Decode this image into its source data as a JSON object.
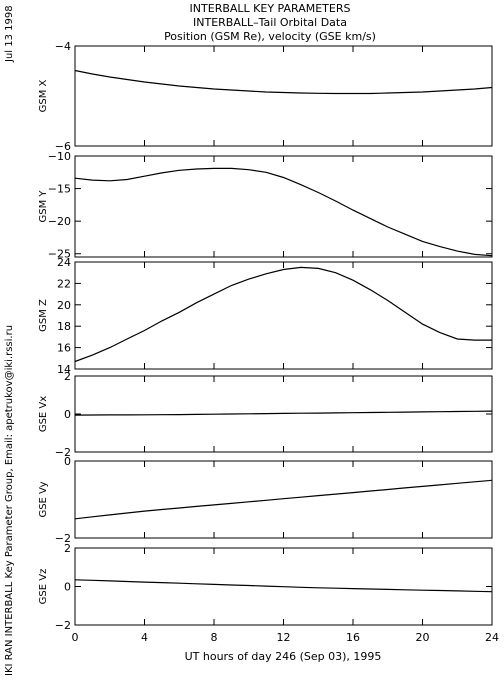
{
  "title_lines": [
    "INTERBALL KEY PARAMETERS",
    "INTERBALL–Tail Orbital Data",
    "Position (GSM Re), velocity (GSE km/s)"
  ],
  "side_date": "Jul 13 1998",
  "side_credit": "IKI RAN INTERBALL Key Parameter Group, Email: apetrukov@iki.rssi.ru",
  "xlabel": "UT hours of day 246 (Sep 03), 1995",
  "chart_data": {
    "type": "line",
    "xlim": [
      0,
      24
    ],
    "xticks": [
      0,
      4,
      8,
      12,
      16,
      20,
      24
    ],
    "xtick_labels": [
      "0",
      "4",
      "8",
      "12",
      "16",
      "20",
      "24"
    ],
    "x": [
      0,
      1,
      2,
      3,
      4,
      5,
      6,
      7,
      8,
      9,
      10,
      11,
      12,
      13,
      14,
      15,
      16,
      17,
      18,
      19,
      20,
      21,
      22,
      23,
      24
    ],
    "panels": [
      {
        "ylabel": "GSM X",
        "ylim": [
          -6,
          -4
        ],
        "yticks": [
          -4,
          -6
        ],
        "ytick_labels": [
          "−4",
          "−6"
        ],
        "values": [
          -4.49,
          -4.56,
          -4.62,
          -4.67,
          -4.72,
          -4.76,
          -4.8,
          -4.83,
          -4.86,
          -4.88,
          -4.9,
          -4.92,
          -4.93,
          -4.94,
          -4.945,
          -4.95,
          -4.95,
          -4.95,
          -4.94,
          -4.93,
          -4.92,
          -4.9,
          -4.88,
          -4.86,
          -4.83
        ]
      },
      {
        "ylabel": "GSM Y",
        "ylim": [
          -25.5,
          -10
        ],
        "yticks": [
          -10,
          -15,
          -20,
          -25
        ],
        "ytick_labels": [
          "−10",
          "−15",
          "−20",
          "−25"
        ],
        "values": [
          -13.4,
          -13.7,
          -13.8,
          -13.6,
          -13.1,
          -12.6,
          -12.2,
          -12.0,
          -11.9,
          -11.9,
          -12.1,
          -12.5,
          -13.3,
          -14.4,
          -15.6,
          -16.9,
          -18.3,
          -19.6,
          -20.9,
          -22.0,
          -23.1,
          -23.9,
          -24.6,
          -25.1,
          -25.3
        ]
      },
      {
        "ylabel": "GSM Z",
        "ylim": [
          14,
          24
        ],
        "yticks": [
          14,
          16,
          18,
          20,
          22,
          24
        ],
        "ytick_labels": [
          "14",
          "16",
          "18",
          "20",
          "22",
          "24"
        ],
        "values": [
          14.7,
          15.3,
          16.0,
          16.8,
          17.6,
          18.5,
          19.3,
          20.2,
          21.0,
          21.8,
          22.4,
          22.9,
          23.3,
          23.5,
          23.4,
          23.0,
          22.3,
          21.4,
          20.4,
          19.3,
          18.2,
          17.4,
          16.8,
          16.7,
          16.7
        ]
      },
      {
        "ylabel": "GSE Vx",
        "ylim": [
          -2,
          2
        ],
        "yticks": [
          2,
          0,
          -2
        ],
        "ytick_labels": [
          "2",
          "0",
          "−2"
        ],
        "values": [
          -0.06,
          -0.055,
          -0.05,
          -0.045,
          -0.04,
          -0.035,
          -0.03,
          -0.02,
          -0.01,
          0.0,
          0.01,
          0.02,
          0.03,
          0.04,
          0.05,
          0.06,
          0.07,
          0.08,
          0.09,
          0.1,
          0.11,
          0.12,
          0.13,
          0.14,
          0.15
        ]
      },
      {
        "ylabel": "GSE Vy",
        "ylim": [
          -2,
          0
        ],
        "yticks": [
          0,
          -2
        ],
        "ytick_labels": [
          "0",
          "−2"
        ],
        "values": [
          -1.5,
          -1.45,
          -1.4,
          -1.35,
          -1.3,
          -1.26,
          -1.22,
          -1.18,
          -1.14,
          -1.1,
          -1.06,
          -1.02,
          -0.98,
          -0.94,
          -0.9,
          -0.86,
          -0.82,
          -0.78,
          -0.74,
          -0.7,
          -0.66,
          -0.62,
          -0.58,
          -0.54,
          -0.5
        ]
      },
      {
        "ylabel": "GSE Vz",
        "ylim": [
          -2,
          2
        ],
        "yticks": [
          2,
          0,
          -2
        ],
        "ytick_labels": [
          "2",
          "0",
          "−2"
        ],
        "values": [
          0.35,
          0.32,
          0.29,
          0.26,
          0.23,
          0.2,
          0.17,
          0.14,
          0.11,
          0.08,
          0.05,
          0.02,
          -0.01,
          -0.04,
          -0.07,
          -0.09,
          -0.11,
          -0.13,
          -0.15,
          -0.17,
          -0.19,
          -0.21,
          -0.23,
          -0.25,
          -0.27
        ]
      }
    ]
  }
}
